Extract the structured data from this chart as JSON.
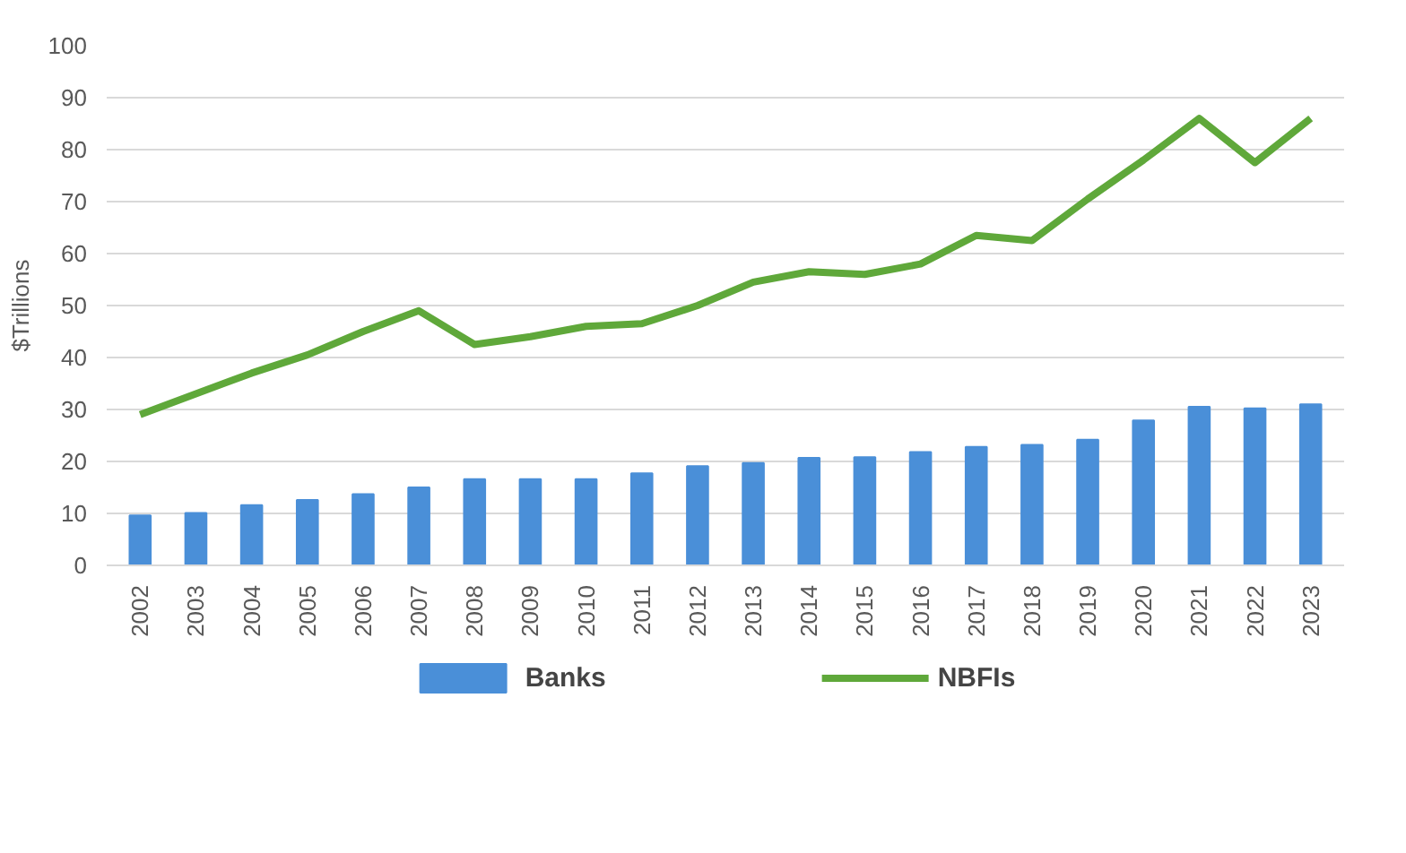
{
  "chart_data": {
    "type": "bar",
    "ylabel": "$Trillions",
    "categories": [
      "2002",
      "2003",
      "2004",
      "2005",
      "2006",
      "2007",
      "2008",
      "2009",
      "2010",
      "2011",
      "2012",
      "2013",
      "2014",
      "2015",
      "2016",
      "2017",
      "2018",
      "2019",
      "2020",
      "2021",
      "2022",
      "2023"
    ],
    "series": [
      {
        "name": "Banks",
        "color": "#4a8fd8",
        "values": [
          9.6,
          10.1,
          11.6,
          12.6,
          13.7,
          15.0,
          16.6,
          16.6,
          16.6,
          17.7,
          19.1,
          19.7,
          20.7,
          20.8,
          21.8,
          22.8,
          23.2,
          24.2,
          27.9,
          30.5,
          30.2,
          31.0
        ]
      },
      {
        "name": "NBFIs",
        "type": "line",
        "color": "#5fa83a",
        "values": [
          29,
          33,
          37,
          40.5,
          45,
          49,
          42.5,
          44,
          46,
          46.5,
          50,
          54.5,
          56.5,
          56,
          58,
          63.5,
          62.5,
          70.5,
          78,
          86,
          77.5,
          86
        ]
      }
    ],
    "ylim": [
      0,
      100
    ],
    "yticks": [
      0,
      10,
      20,
      30,
      40,
      50,
      60,
      70,
      80,
      90,
      100
    ],
    "grid": "y",
    "legend": "bottom"
  }
}
